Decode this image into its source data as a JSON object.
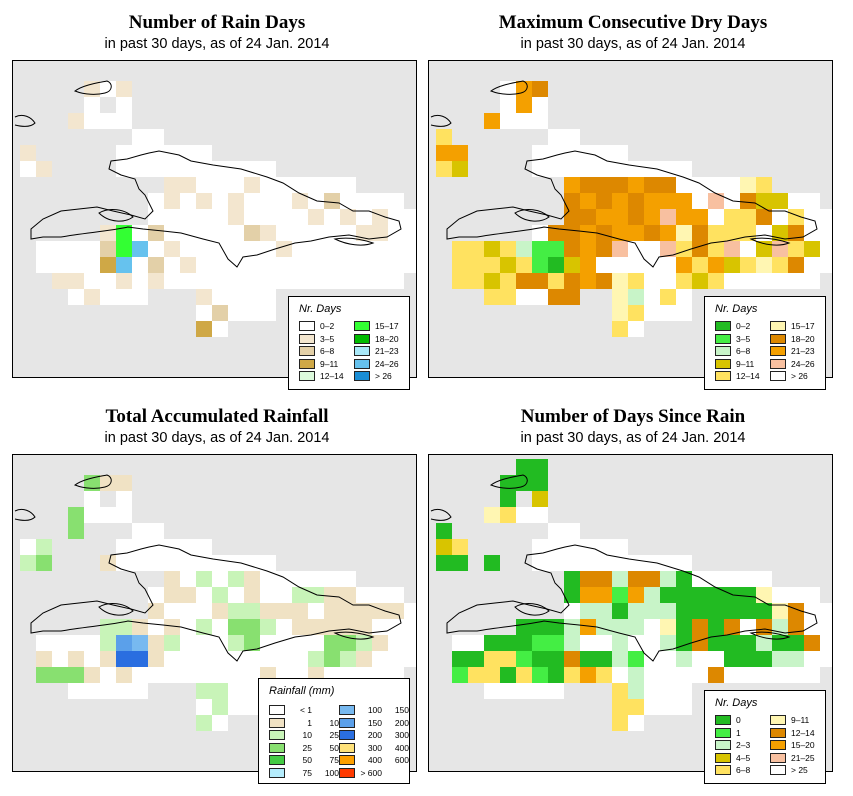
{
  "map_region": "Hispaniola",
  "colors": {
    "background": "#e6e6e6",
    "land": "#ffffff",
    "rain_days": [
      "#ffffff",
      "#f3e6cf",
      "#e3d0a8",
      "#cfa846",
      "#dcfadc",
      "#33ff33",
      "#00bb00",
      "#a8e8f8",
      "#66c2ee",
      "#1a8ed6"
    ],
    "dry_days": [
      "#22bb22",
      "#44ee44",
      "#c8f4c8",
      "#d8c400",
      "#ffe260",
      "#fff6b2",
      "#dd8800",
      "#f4a000",
      "#f8c0a0",
      "#ffffff"
    ],
    "rainfall": [
      "#ffffff",
      "#f0e2c4",
      "#c8f4b8",
      "#88e070",
      "#44cc44",
      "#b4ecfc",
      "#77b9f0",
      "#5ba0ea",
      "#2a6ee0",
      "#ffe27a",
      "#ffa000",
      "#ff3a00"
    ],
    "since_rain": [
      "#22bb22",
      "#44ee44",
      "#c8f4c8",
      "#d8c400",
      "#ffe260",
      "#fff6b2",
      "#dd8800",
      "#f4a000",
      "#f8c0a0",
      "#ffffff"
    ]
  },
  "panels": [
    {
      "key": "rain_days",
      "title": "Number of Rain Days",
      "subtitle": "in past 30 days, as of  24 Jan. 2014",
      "legend": {
        "title": "Nr. Days",
        "items": [
          {
            "label": "0–2",
            "color": "#ffffff"
          },
          {
            "label": "3–5",
            "color": "#f3e6cf"
          },
          {
            "label": "6–8",
            "color": "#e3d0a8"
          },
          {
            "label": "9–11",
            "color": "#cfa846"
          },
          {
            "label": "12–14",
            "color": "#dcfadc"
          },
          {
            "label": "15–17",
            "color": "#33ff33"
          },
          {
            "label": "18–20",
            "color": "#00bb00"
          },
          {
            "label": "21–23",
            "color": "#a8e8f8"
          },
          {
            "label": "24–26",
            "color": "#66c2ee"
          },
          {
            "label": "> 26",
            "color": "#1a8ed6"
          }
        ]
      }
    },
    {
      "key": "dry_days",
      "title": "Maximum Consecutive Dry Days",
      "subtitle": "in past 30 days, as of  24 Jan. 2014",
      "legend": {
        "title": "Nr. Days",
        "items": [
          {
            "label": "0–2",
            "color": "#22bb22"
          },
          {
            "label": "3–5",
            "color": "#44ee44"
          },
          {
            "label": "6–8",
            "color": "#c8f4c8"
          },
          {
            "label": "9–11",
            "color": "#d8c400"
          },
          {
            "label": "12–14",
            "color": "#ffe260"
          },
          {
            "label": "15–17",
            "color": "#fff6b2"
          },
          {
            "label": "18–20",
            "color": "#dd8800"
          },
          {
            "label": "21–23",
            "color": "#f4a000"
          },
          {
            "label": "24–26",
            "color": "#f8c0a0"
          },
          {
            "label": "> 26",
            "color": "#ffffff"
          }
        ]
      }
    },
    {
      "key": "rainfall",
      "title": "Total Accumulated Rainfall",
      "subtitle": "in past 30 days, as of  24 Jan. 2014",
      "legend": {
        "title": "Rainfall (mm)",
        "items": [
          {
            "a": "< 1",
            "b": "",
            "color": "#ffffff"
          },
          {
            "a": "1",
            "b": "10",
            "color": "#f0e2c4"
          },
          {
            "a": "10",
            "b": "25",
            "color": "#c8f4b8"
          },
          {
            "a": "25",
            "b": "50",
            "color": "#88e070"
          },
          {
            "a": "50",
            "b": "75",
            "color": "#44cc44"
          },
          {
            "a": "75",
            "b": "100",
            "color": "#b4ecfc"
          },
          {
            "a": "100",
            "b": "150",
            "color": "#77b9f0"
          },
          {
            "a": "150",
            "b": "200",
            "color": "#5ba0ea"
          },
          {
            "a": "200",
            "b": "300",
            "color": "#2a6ee0"
          },
          {
            "a": "300",
            "b": "400",
            "color": "#ffe27a"
          },
          {
            "a": "400",
            "b": "600",
            "color": "#ffa000"
          },
          {
            "a": "> 600",
            "b": "",
            "color": "#ff3a00"
          }
        ]
      }
    },
    {
      "key": "since_rain",
      "title": "Number of Days Since Rain",
      "subtitle": "in past 30 days, as of  24 Jan. 2014",
      "legend": {
        "title": "Nr. Days",
        "items": [
          {
            "label": "0",
            "color": "#22bb22"
          },
          {
            "label": "1",
            "color": "#44ee44"
          },
          {
            "label": "2–3",
            "color": "#c8f4c8"
          },
          {
            "label": "4–5",
            "color": "#d8c400"
          },
          {
            "label": "6–8",
            "color": "#ffe260"
          },
          {
            "label": "9–11",
            "color": "#fff6b2"
          },
          {
            "label": "12–14",
            "color": "#dd8800"
          },
          {
            "label": "15–20",
            "color": "#f4a000"
          },
          {
            "label": "21–25",
            "color": "#f8c0a0"
          },
          {
            "label": "> 25",
            "color": "#ffffff"
          }
        ]
      }
    }
  ]
}
